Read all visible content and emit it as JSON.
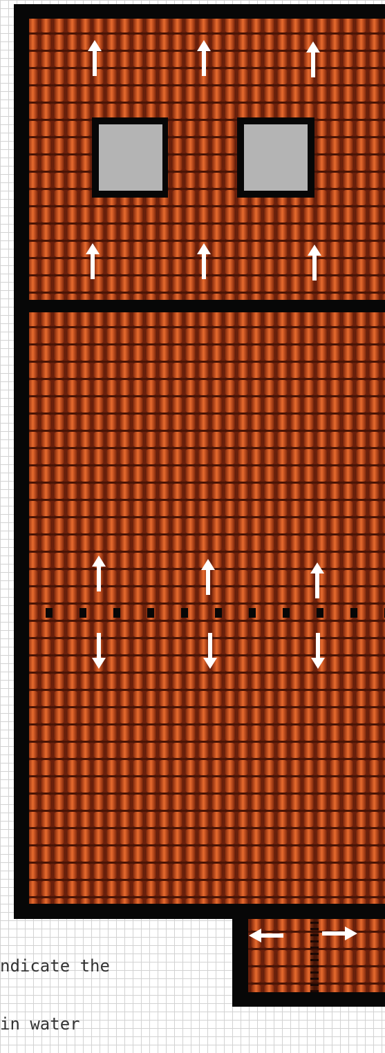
{
  "diagram": {
    "sections": [
      "upper-roof-section",
      "lower-roof-section",
      "annex-roof-section"
    ],
    "ridge_line": "dotted",
    "skylights": [
      "skylight-left",
      "skylight-right"
    ],
    "arrow_flow": {
      "upper": "up",
      "lower_above_ridge": "up",
      "lower_below_ridge": "down",
      "annex": "left-right"
    },
    "note": {
      "lines": [
        "ndicate the",
        "in water"
      ]
    }
  },
  "colors": {
    "outline": "#070707",
    "tile_dark": "#5a1a08",
    "tile_mid": "#b5431a",
    "tile_light": "#e86b2e",
    "skylight": "#b4b4b4",
    "arrow": "#ffffff"
  }
}
